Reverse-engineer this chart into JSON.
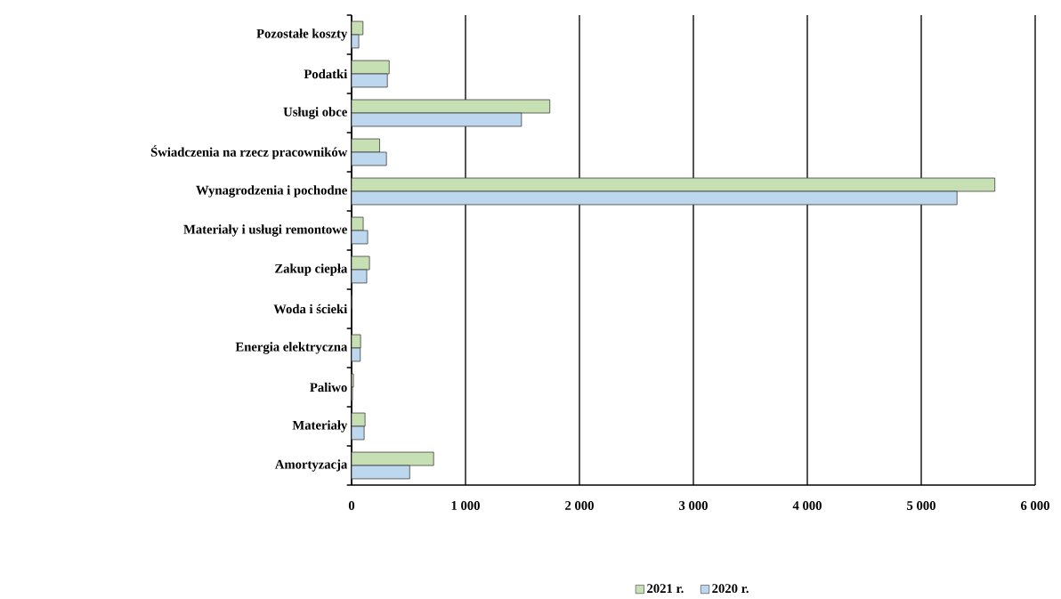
{
  "chart_data": {
    "type": "bar",
    "orientation": "horizontal",
    "categories": [
      "Pozostałe koszty",
      "Podatki",
      "Usługi obce",
      "Świadczenia na rzecz pracowników",
      "Wynagrodzenia i pochodne",
      "Materiały i usługi remontowe",
      "Zakup ciepła",
      "Woda i ścieki",
      "Energia elektryczna",
      "Paliwo",
      "Materiały",
      "Amortyzacja"
    ],
    "series": [
      {
        "name": "2021 r.",
        "color": "#c6e0b4",
        "values": [
          100,
          330,
          1740,
          246,
          5646,
          102,
          157,
          5,
          79,
          16,
          118,
          720
        ]
      },
      {
        "name": "2020 r.",
        "color": "#bdd7ee",
        "values": [
          63,
          314,
          1491,
          306,
          5314,
          141,
          133,
          null,
          76,
          8,
          110,
          510
        ]
      }
    ],
    "xlim": [
      0,
      6000
    ],
    "xticks": [
      0,
      {
        "value": 1000,
        "label": "1 000"
      },
      {
        "value": 2000,
        "label": "2 000"
      },
      {
        "value": 3000,
        "label": "3 000"
      },
      {
        "value": 4000,
        "label": "4 000"
      },
      {
        "value": 5000,
        "label": "5 000"
      },
      {
        "value": 6000,
        "label": "6 000"
      }
    ],
    "grid": "x",
    "legend": "bottom"
  }
}
